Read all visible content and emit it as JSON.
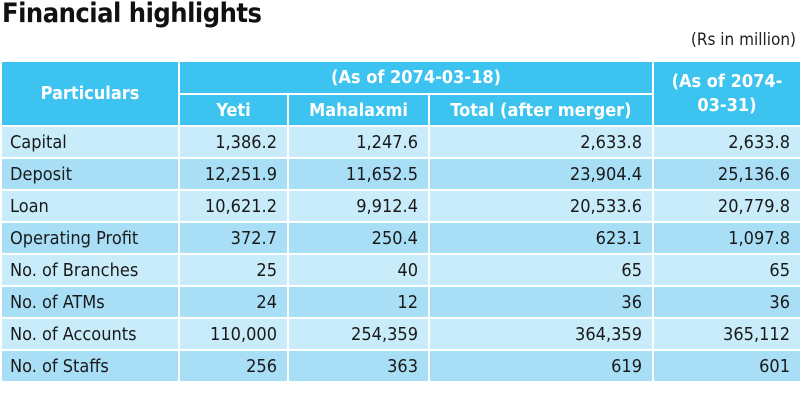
{
  "title": "Financial highlights",
  "unit_note": "(Rs in million)",
  "table": {
    "header": {
      "particulars": "Particulars",
      "group": "(As of 2074-03-18)",
      "last": "(As of 2074-03-31)",
      "sub": [
        "Yeti",
        "Mahalaxmi",
        "Total (after merger)"
      ]
    },
    "rows": [
      [
        "Capital",
        "1,386.2",
        "1,247.6",
        "2,633.8",
        "2,633.8"
      ],
      [
        "Deposit",
        "12,251.9",
        "11,652.5",
        "23,904.4",
        "25,136.6"
      ],
      [
        "Loan",
        "10,621.2",
        "9,912.4",
        "20,533.6",
        "20,779.8"
      ],
      [
        "Operating Profit",
        "372.7",
        "250.4",
        "623.1",
        "1,097.8"
      ],
      [
        "No. of Branches",
        "25",
        "40",
        "65",
        "65"
      ],
      [
        "No. of ATMs",
        "24",
        "12",
        "36",
        "36"
      ],
      [
        "No. of Accounts",
        "110,000",
        "254,359",
        "364,359",
        "365,112"
      ],
      [
        "No. of Staffs",
        "256",
        "363",
        "619",
        "601"
      ]
    ]
  }
}
